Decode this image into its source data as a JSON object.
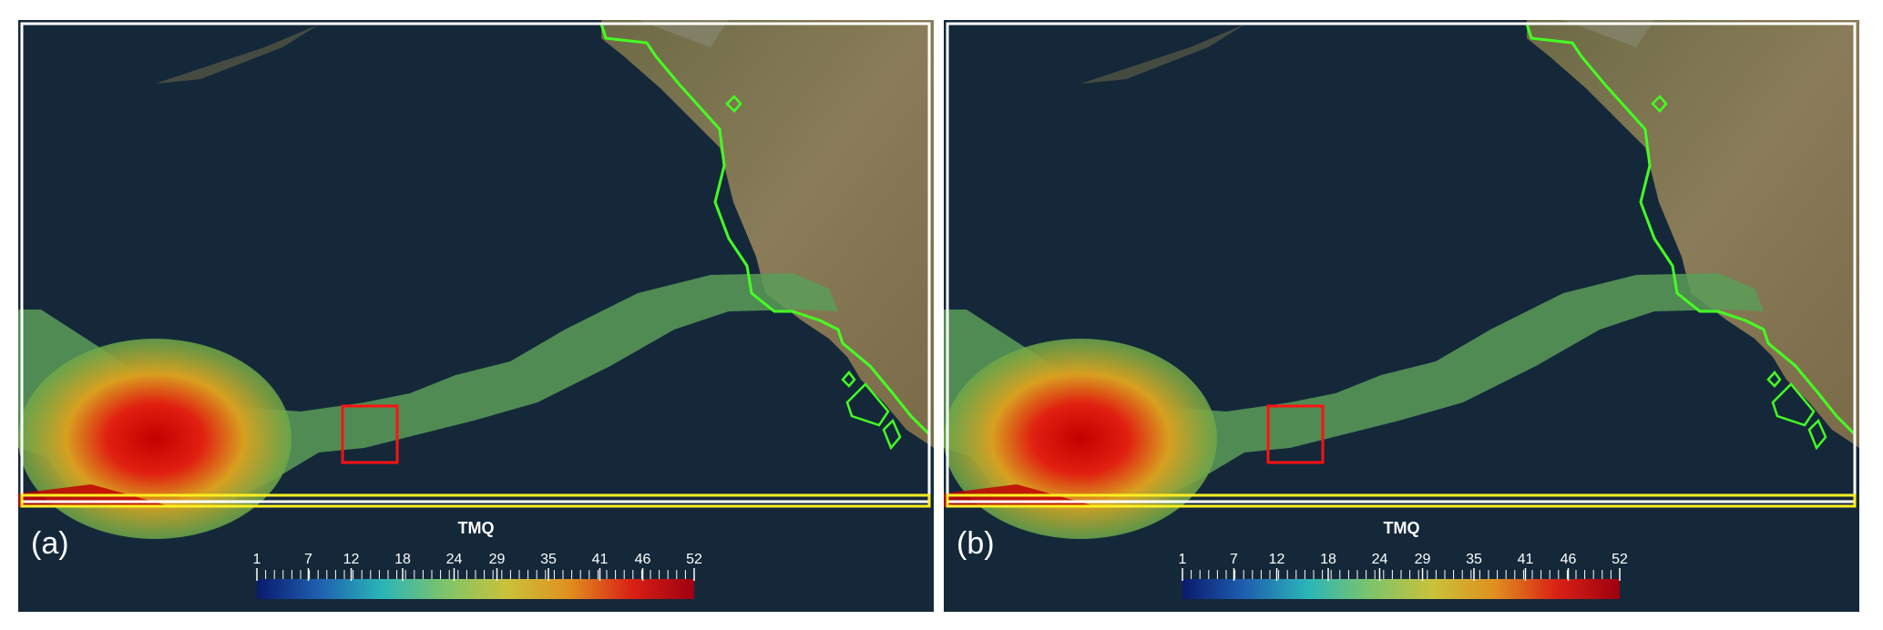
{
  "panels": [
    {
      "id": "a",
      "label": "(a)",
      "colorbar_title": "TMQ"
    },
    {
      "id": "b",
      "label": "(b)",
      "colorbar_title": "TMQ"
    }
  ],
  "colorbar": {
    "title": "TMQ",
    "tick_labels": [
      "1",
      "7",
      "12",
      "18",
      "24",
      "29",
      "35",
      "41",
      "46",
      "52"
    ],
    "range": [
      1,
      52
    ],
    "colors": [
      "#0a1a6e",
      "#1f5fb0",
      "#2bb5b8",
      "#7cc46a",
      "#c9c23a",
      "#e0901f",
      "#d92015",
      "#9e0010"
    ]
  },
  "overlays": {
    "domain_box_color": "#ffffff",
    "land_mask_color": "#44ff22",
    "ar_region_color": "#ffee22",
    "highlight_box_color": "#ff1111"
  }
}
